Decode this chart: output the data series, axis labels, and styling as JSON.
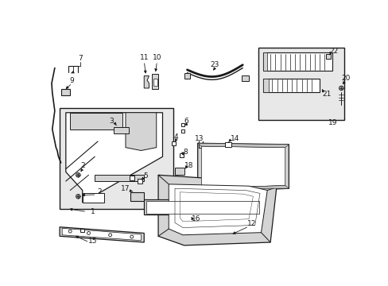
{
  "background_color": "#ffffff",
  "line_color": "#1a1a1a",
  "gray_fill": "#e8e8e8",
  "dark_fill": "#c0c0c0",
  "mid_fill": "#d4d4d4"
}
